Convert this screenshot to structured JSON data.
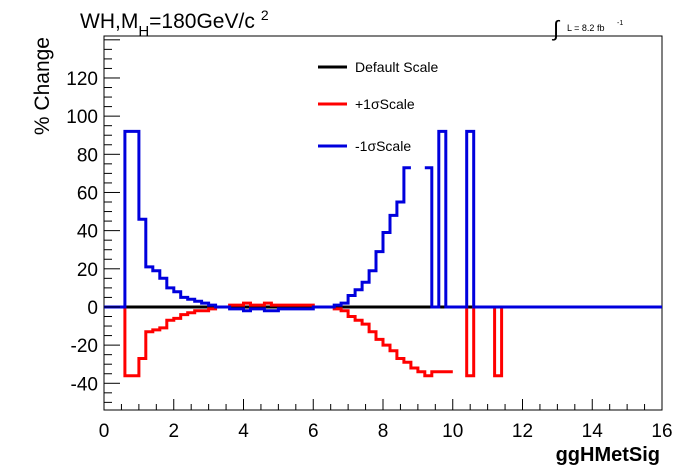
{
  "chart_data": {
    "type": "line",
    "title": "WH,M",
    "title_sub": "H",
    "title_rest": "=180GeV/c",
    "title_sup": "2",
    "lumi": {
      "integral": "∫",
      "text": "L = 8.2 fb",
      "exponent": "-1"
    },
    "xlabel": "ggHMetSig",
    "ylabel": "% Change",
    "xlim": [
      0,
      16
    ],
    "ylim": [
      -54,
      142
    ],
    "x_ticks": [
      0,
      2,
      4,
      6,
      8,
      10,
      12,
      14,
      16
    ],
    "y_ticks": [
      -40,
      -20,
      0,
      20,
      40,
      60,
      80,
      100,
      120
    ],
    "grid": false,
    "legend_position": "top-center",
    "bin_edges": [
      0,
      0.2,
      0.4,
      0.6,
      0.8,
      1.0,
      1.2,
      1.4,
      1.6,
      1.8,
      2.0,
      2.2,
      2.4,
      2.6,
      2.8,
      3.0,
      3.2,
      3.4,
      3.6,
      3.8,
      4.0,
      4.2,
      4.4,
      4.6,
      4.8,
      5.0,
      5.2,
      5.4,
      5.6,
      5.8,
      6.0,
      6.2,
      6.4,
      6.6,
      6.8,
      7.0,
      7.2,
      7.4,
      7.6,
      7.8,
      8.0,
      8.2,
      8.4,
      8.6,
      8.8,
      9.0,
      9.2,
      9.4,
      9.6,
      9.8,
      10.0,
      10.2,
      10.4,
      10.6,
      10.8,
      11.0,
      11.2,
      11.4,
      11.6,
      11.8,
      12.0,
      12.2,
      12.4,
      12.6,
      12.8,
      13.0,
      13.2,
      13.4,
      13.6,
      13.8,
      14.0,
      14.2,
      14.4,
      14.6,
      14.8,
      15.0,
      15.2,
      15.4,
      15.6,
      15.8,
      16.0
    ],
    "series": [
      {
        "name": "Default Scale",
        "color": "#000000",
        "values": [
          0,
          0,
          0,
          0,
          0,
          0,
          0,
          0,
          0,
          0,
          0,
          0,
          0,
          0,
          0,
          0,
          0,
          0,
          0,
          0,
          0,
          0,
          0,
          0,
          0,
          0,
          0,
          0,
          0,
          0,
          0,
          0,
          0,
          0,
          0,
          0,
          0,
          0,
          0,
          0,
          0,
          0,
          0,
          0,
          0,
          0,
          0,
          0,
          0,
          0,
          0,
          0,
          0,
          0,
          0,
          0,
          0,
          0,
          0,
          0,
          0,
          0,
          0,
          0,
          0,
          0,
          0,
          0,
          0,
          0,
          0,
          0,
          0,
          0,
          0,
          0,
          0,
          0,
          0,
          0
        ]
      },
      {
        "name": "+1σScale",
        "color": "#ff0000",
        "values": [
          0,
          0,
          0,
          -36,
          -36,
          -27,
          -13,
          -12,
          -11,
          -7,
          -6,
          -4,
          -3,
          -2,
          -2,
          -1,
          0,
          0,
          1,
          1,
          2,
          1,
          1,
          2,
          1,
          1,
          1,
          1,
          1,
          1,
          0,
          0,
          0,
          -1,
          -2,
          -5,
          -7,
          -9,
          -13,
          -17,
          -20,
          -23,
          -27,
          -29,
          -32,
          -34,
          -36,
          -34,
          -34,
          -34,
          null,
          0,
          -36,
          0,
          0,
          0,
          -36,
          0,
          0,
          0,
          0,
          0,
          0,
          0,
          0,
          0,
          0,
          0,
          0,
          0,
          0,
          0,
          0,
          0,
          0,
          0,
          0,
          0,
          0,
          0
        ]
      },
      {
        "name": "-1σScale",
        "color": "#0000dd",
        "values": [
          0,
          0,
          0,
          92,
          92,
          46,
          21,
          19,
          15,
          10,
          8,
          5,
          4,
          3,
          2,
          1,
          0,
          0,
          -1,
          -1,
          -2,
          -1,
          -1,
          -2,
          -2,
          -1,
          -1,
          -1,
          -1,
          -1,
          0,
          0,
          0,
          1,
          2,
          6,
          9,
          13,
          19,
          29,
          39,
          48,
          55,
          73,
          null,
          null,
          73,
          0,
          92,
          0,
          0,
          0,
          92,
          0,
          0,
          0,
          0,
          0,
          0,
          0,
          0,
          0,
          0,
          0,
          0,
          0,
          0,
          0,
          0,
          0,
          0,
          0,
          0,
          0,
          0,
          0,
          0,
          0,
          0,
          0
        ]
      }
    ]
  }
}
